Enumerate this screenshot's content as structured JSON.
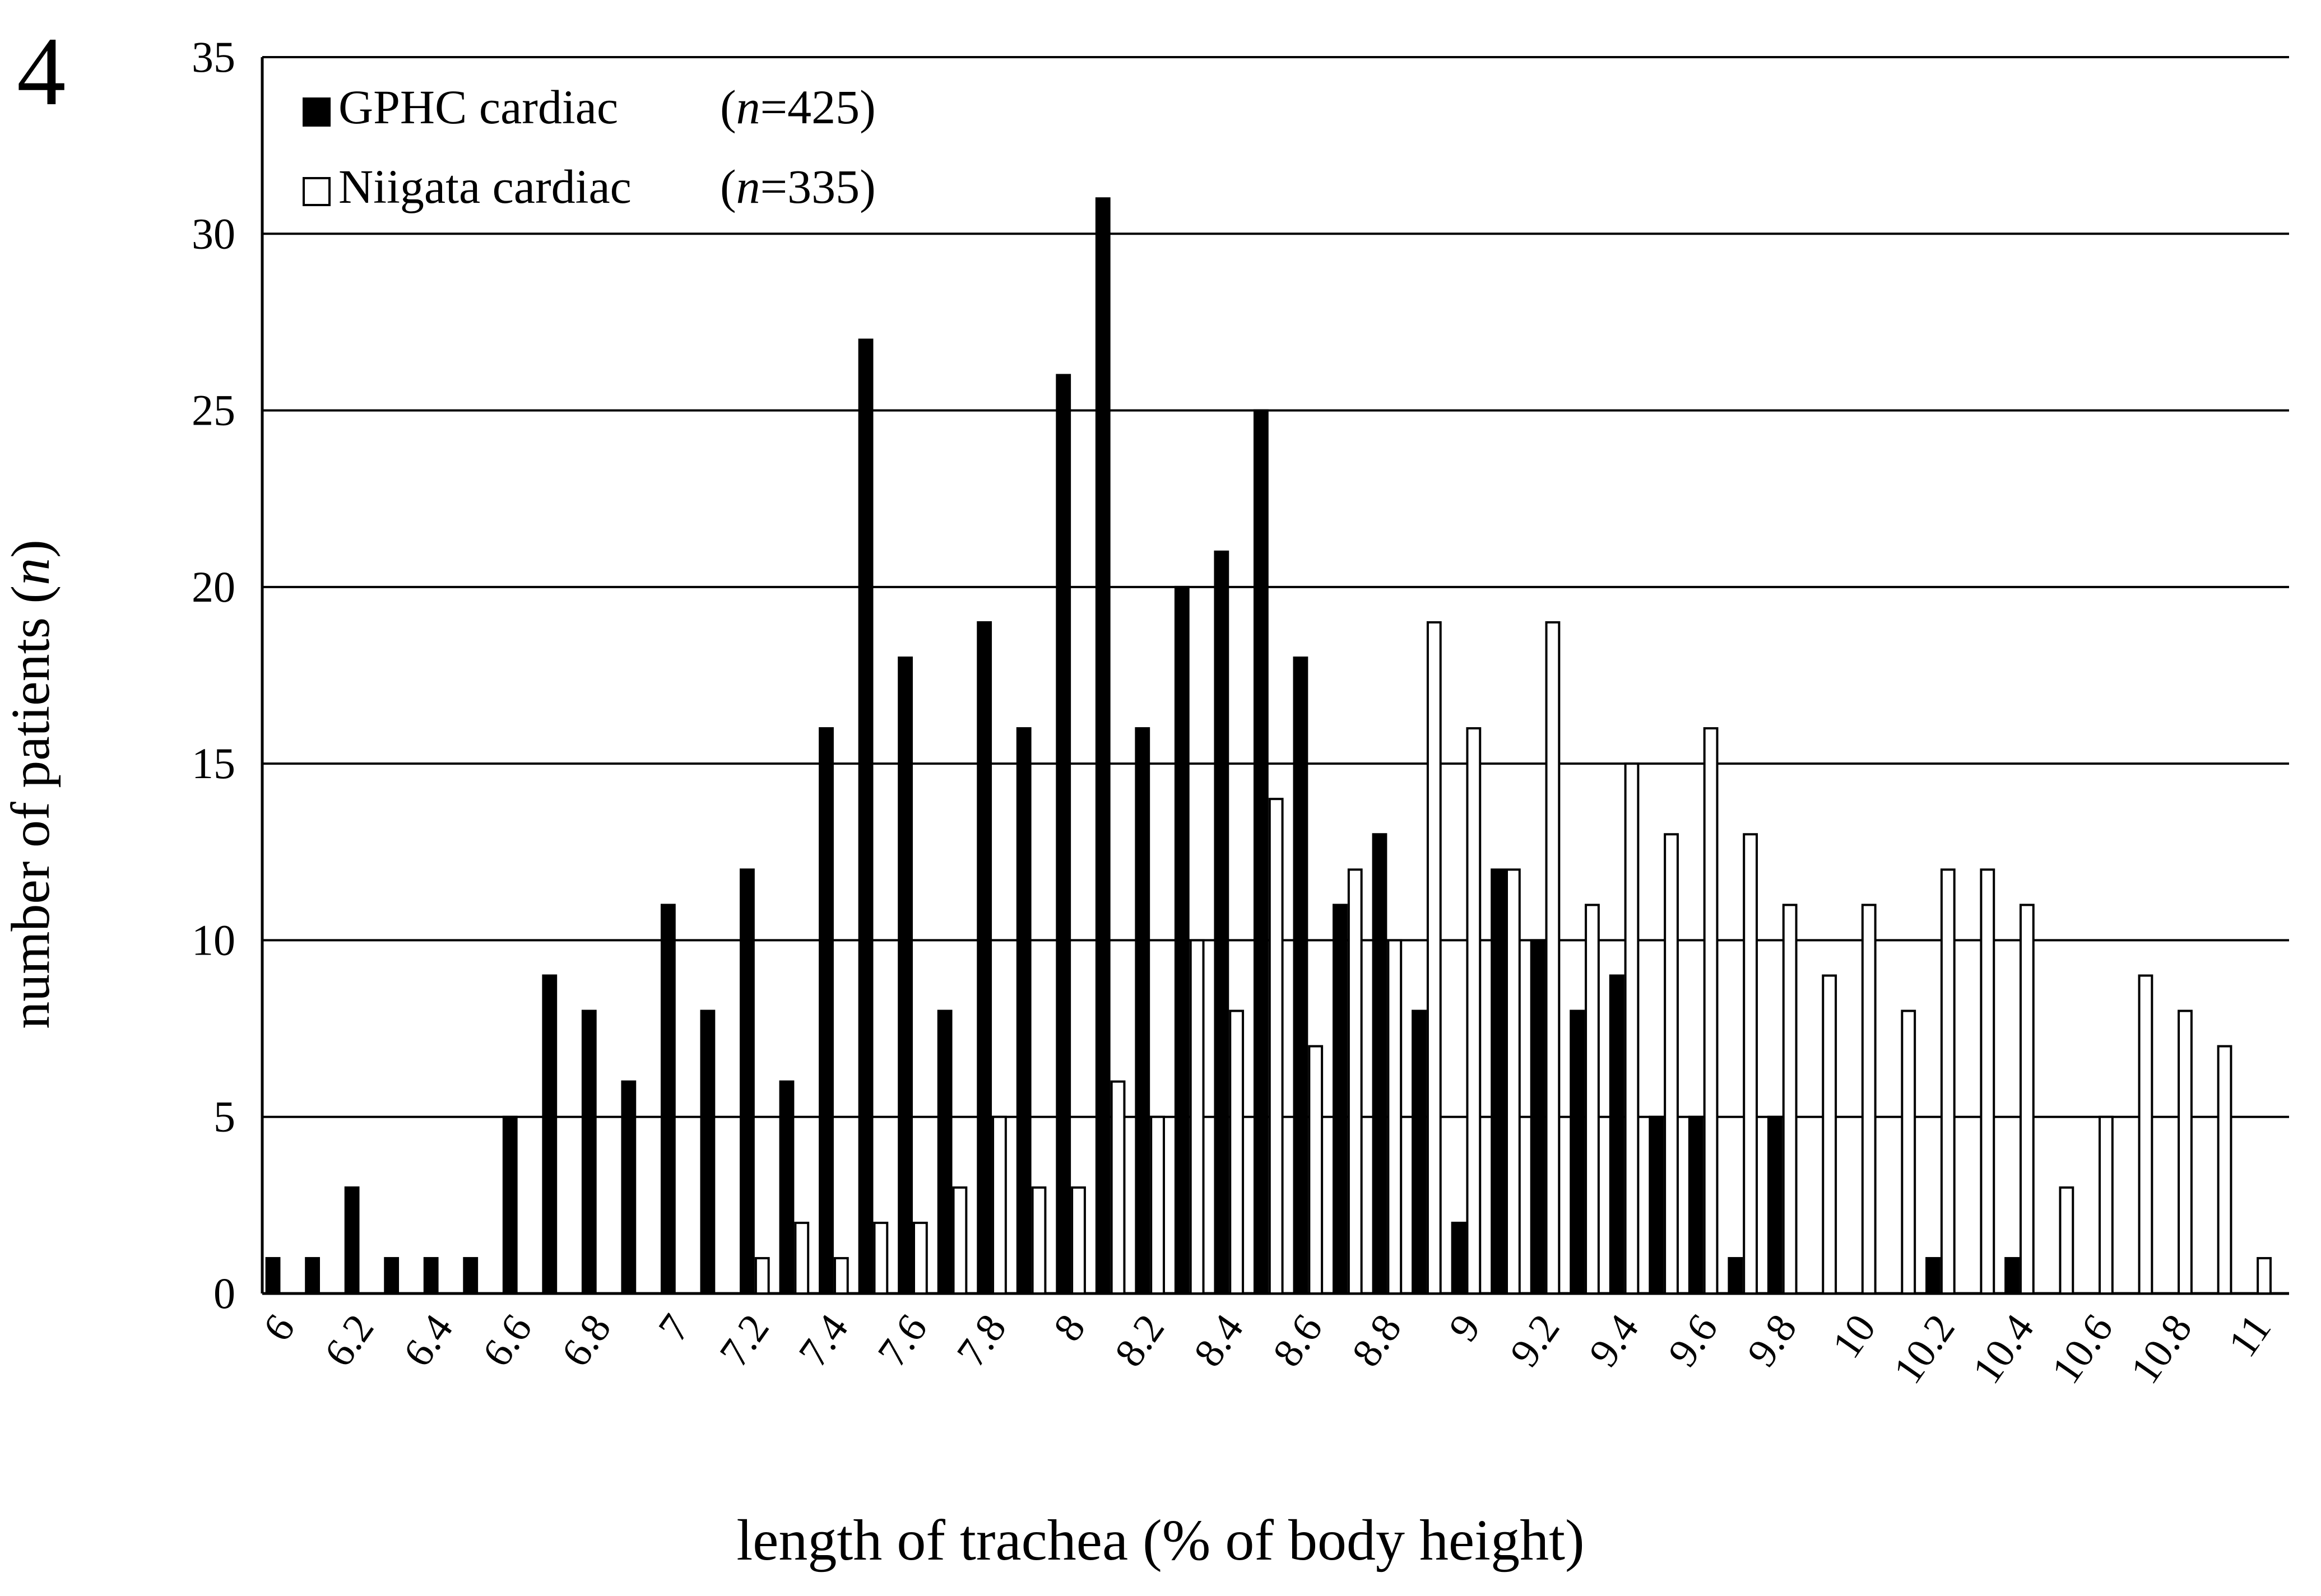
{
  "figure_label": "4",
  "chart_data": {
    "type": "bar",
    "xlabel": "length of trachea (% of body height)",
    "ylabel": "number of patients (",
    "ylabel_n": "n",
    "ylabel_close": ")",
    "ylim": [
      0,
      35
    ],
    "yticks": [
      "0",
      "5",
      "10",
      "15",
      "20",
      "25",
      "30",
      "35"
    ],
    "ytick_values": [
      0,
      5,
      10,
      15,
      20,
      25,
      30,
      35
    ],
    "grid": true,
    "legend_placement": "top-left",
    "categories": [
      "6",
      "6.1",
      "6.2",
      "6.3",
      "6.4",
      "6.5",
      "6.6",
      "6.7",
      "6.8",
      "6.9",
      "7",
      "7.1",
      "7.2",
      "7.3",
      "7.4",
      "7.5",
      "7.6",
      "7.7",
      "7.8",
      "7.9",
      "8",
      "8.1",
      "8.2",
      "8.3",
      "8.4",
      "8.5",
      "8.6",
      "8.7",
      "8.8",
      "8.9",
      "9",
      "9.1",
      "9.2",
      "9.3",
      "9.4",
      "9.5",
      "9.6",
      "9.7",
      "9.8",
      "9.9",
      "10",
      "10.1",
      "10.2",
      "10.3",
      "10.4",
      "10.5",
      "10.6",
      "10.7",
      "10.8",
      "10.9",
      "11"
    ],
    "xtick_labels": [
      "6",
      "",
      "6.2",
      "",
      "6.4",
      "",
      "6.6",
      "",
      "6.8",
      "",
      "7",
      "",
      "7.2",
      "",
      "7.4",
      "",
      "7.6",
      "",
      "7.8",
      "",
      "8",
      "",
      "8.2",
      "",
      "8.4",
      "",
      "8.6",
      "",
      "8.8",
      "",
      "9",
      "",
      "9.2",
      "",
      "9.4",
      "",
      "9.6",
      "",
      "9.8",
      "",
      "10",
      "",
      "10.2",
      "",
      "10.4",
      "",
      "10.6",
      "",
      "10.8",
      "",
      "11"
    ],
    "series": [
      {
        "name": "GPHC cardiac",
        "n_label": "n",
        "n_value": "=425)",
        "n_open": "(",
        "color": "#000000",
        "values": [
          1,
          1,
          3,
          1,
          1,
          1,
          5,
          9,
          8,
          6,
          11,
          8,
          12,
          6,
          16,
          27,
          18,
          8,
          19,
          16,
          26,
          31,
          16,
          20,
          21,
          25,
          18,
          11,
          13,
          8,
          2,
          12,
          10,
          8,
          9,
          5,
          5,
          1,
          5,
          0,
          0,
          0,
          1,
          0,
          1,
          0,
          0,
          0,
          0,
          0,
          0
        ]
      },
      {
        "name": "Niigata cardiac",
        "n_label": "n",
        "n_value": "=335)",
        "n_open": "(",
        "color": "#ffffff",
        "values": [
          0,
          0,
          0,
          0,
          0,
          0,
          0,
          0,
          0,
          0,
          0,
          0,
          1,
          2,
          1,
          2,
          2,
          3,
          5,
          3,
          3,
          6,
          5,
          10,
          8,
          14,
          7,
          12,
          10,
          19,
          16,
          12,
          19,
          11,
          15,
          13,
          16,
          13,
          11,
          9,
          11,
          8,
          12,
          12,
          11,
          3,
          5,
          9,
          8,
          7,
          1
        ]
      }
    ]
  }
}
